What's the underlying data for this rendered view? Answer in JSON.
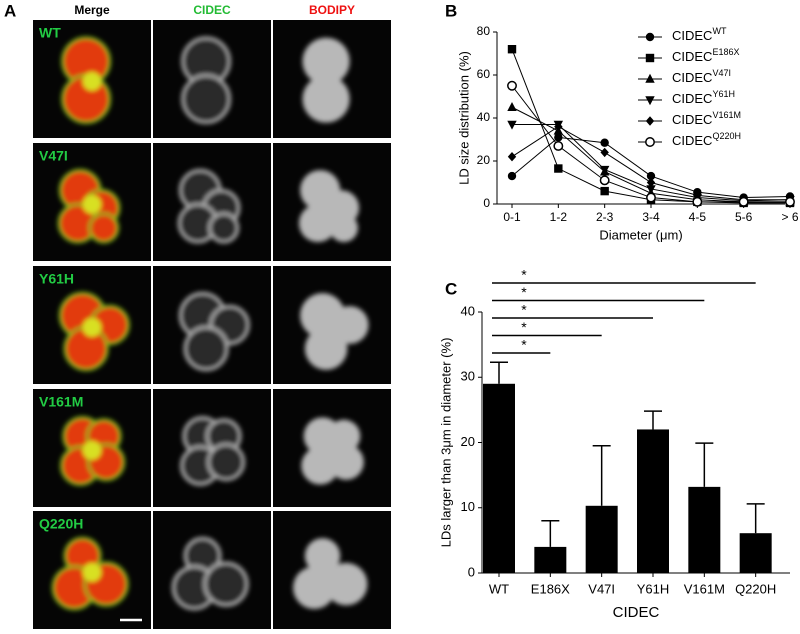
{
  "panel_a": {
    "label": "A",
    "columns": [
      {
        "text": "Merge",
        "color": "#000000"
      },
      {
        "text": "CIDEC",
        "color": "#22bb33"
      },
      {
        "text": "BODIPY",
        "color": "#ee1111"
      }
    ],
    "rows": [
      "WT",
      "V47I",
      "Y61H",
      "V161M",
      "Q220H"
    ],
    "row_color": "#22cc44"
  },
  "chart_data": [
    {
      "type": "line",
      "panel": "B",
      "xlabel": "Diameter (μm)",
      "ylabel": "LD size distribution (%)",
      "categories": [
        "0-1",
        "1-2",
        "2-3",
        "3-4",
        "4-5",
        "5-6",
        "> 6"
      ],
      "ylim": [
        0,
        80
      ],
      "yticks": [
        0,
        20,
        40,
        60,
        80
      ],
      "color": "#000000",
      "series": [
        {
          "name": [
            "CIDEC",
            "WT"
          ],
          "marker": "circle",
          "values": [
            13,
            31,
            28.5,
            13,
            5.5,
            3,
            3.5
          ]
        },
        {
          "name": [
            "CIDEC",
            "E186X"
          ],
          "marker": "square",
          "values": [
            72,
            16.5,
            6,
            2,
            1,
            0.5,
            0.5
          ]
        },
        {
          "name": [
            "CIDEC",
            "V47I"
          ],
          "marker": "triangle",
          "values": [
            45,
            34,
            15,
            5,
            2,
            1,
            1
          ]
        },
        {
          "name": [
            "CIDEC",
            "Y61H"
          ],
          "marker": "triangle-down",
          "values": [
            37,
            37,
            16,
            7,
            3,
            1.5,
            2
          ]
        },
        {
          "name": [
            "CIDEC",
            "V161M"
          ],
          "marker": "diamond",
          "values": [
            22,
            36,
            24,
            10,
            4,
            2,
            2
          ]
        },
        {
          "name": [
            "CIDEC",
            "Q220H"
          ],
          "marker": "open-circle",
          "values": [
            55,
            27,
            11,
            3,
            1,
            1,
            1
          ]
        }
      ]
    },
    {
      "type": "bar",
      "panel": "C",
      "xlabel": "CIDEC",
      "ylabel": "LDs larger than 3μm in diameter (%)",
      "categories": [
        "WT",
        "E186X",
        "V47I",
        "Y61H",
        "V161M",
        "Q220H"
      ],
      "values": [
        29,
        4,
        10.3,
        22,
        13.2,
        6.1
      ],
      "errors": [
        3.3,
        4,
        9.2,
        2.8,
        6.7,
        4.5
      ],
      "ylim": [
        0,
        40
      ],
      "yticks": [
        0,
        10,
        20,
        30,
        40
      ],
      "color": "#000000",
      "annotations": [
        "*",
        "*",
        "*",
        "*",
        "*"
      ]
    }
  ]
}
